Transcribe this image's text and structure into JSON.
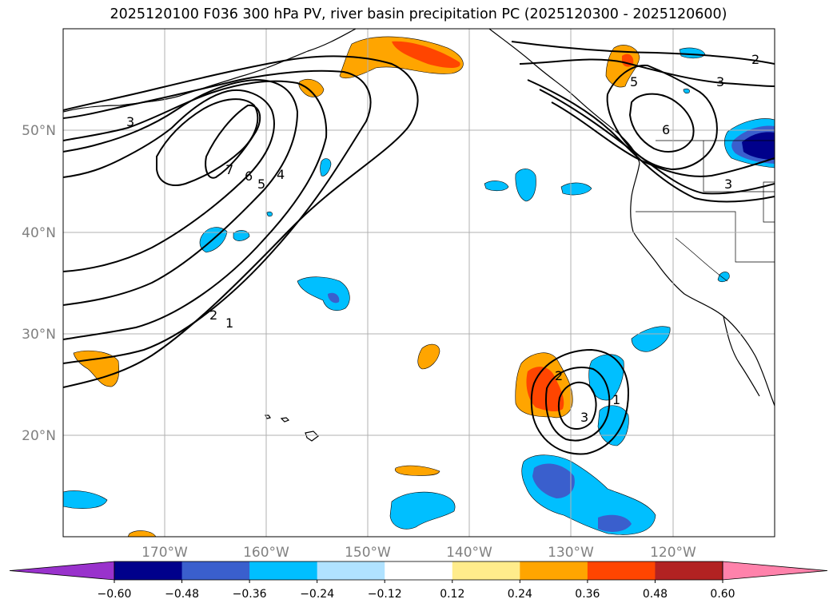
{
  "title": "2025120100 F036 300 hPa PV, river basin precipitation PC (2025120300 - 2025120600)",
  "map": {
    "lon_ticks": [
      "170°W",
      "160°W",
      "150°W",
      "140°W",
      "130°W",
      "120°W"
    ],
    "lat_ticks": [
      "20°N",
      "30°N",
      "40°N",
      "50°N"
    ],
    "grid": true,
    "contour_labels": {
      "west": [
        "3",
        "7",
        "6",
        "5",
        "4",
        "2",
        "1"
      ],
      "east": [
        "2",
        "3",
        "5",
        "6",
        "3"
      ],
      "south": [
        "2",
        "3",
        "1"
      ]
    }
  },
  "colorbar": {
    "ticks": [
      "−0.60",
      "−0.48",
      "−0.36",
      "−0.24",
      "−0.12",
      "0.12",
      "0.24",
      "0.36",
      "0.48",
      "0.60"
    ],
    "colors": [
      "#9932cc",
      "#00008b",
      "#3a5fcd",
      "#00bfff",
      "#b0e2ff",
      "#ffffff",
      "#ffec8b",
      "#ffa500",
      "#ff4500",
      "#b22222",
      "#ff82ab"
    ],
    "extend": "both"
  }
}
